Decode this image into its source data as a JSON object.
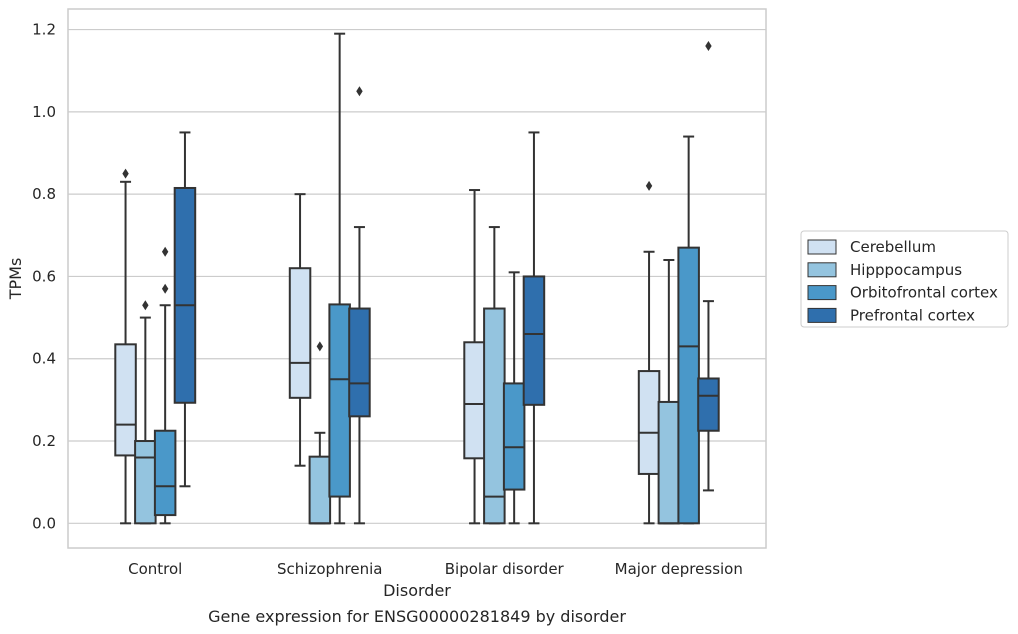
{
  "chart_data": {
    "type": "boxplot",
    "title": "Gene expression for ENSG00000281849 by disorder",
    "xlabel": "Disorder",
    "ylabel": "TPMs",
    "ylim": [
      -0.06,
      1.25
    ],
    "yticks": [
      "0.0",
      "0.2",
      "0.4",
      "0.6",
      "0.8",
      "1.0",
      "1.2"
    ],
    "ytick_values": [
      0,
      0.2,
      0.4,
      0.6,
      0.8,
      1.0,
      1.2
    ],
    "grid": "horizontal",
    "legend_position": "right",
    "categories": [
      "Control",
      "Schizophrenia",
      "Bipolar disorder",
      "Major depression"
    ],
    "series": [
      {
        "name": "Cerebellum",
        "color": "#d0e1f2",
        "boxes": [
          {
            "whislo": 0.0,
            "q1": 0.165,
            "med": 0.24,
            "q3": 0.435,
            "whishi": 0.83,
            "fliers": [
              0.85
            ]
          },
          {
            "whislo": 0.14,
            "q1": 0.305,
            "med": 0.39,
            "q3": 0.62,
            "whishi": 0.8,
            "fliers": []
          },
          {
            "whislo": 0.0,
            "q1": 0.158,
            "med": 0.29,
            "q3": 0.44,
            "whishi": 0.81,
            "fliers": []
          },
          {
            "whislo": 0.0,
            "q1": 0.12,
            "med": 0.22,
            "q3": 0.37,
            "whishi": 0.66,
            "fliers": [
              0.82
            ]
          }
        ]
      },
      {
        "name": "Hipppocampus",
        "color": "#94c4df",
        "boxes": [
          {
            "whislo": 0.0,
            "q1": 0.0,
            "med": 0.16,
            "q3": 0.2,
            "whishi": 0.5,
            "fliers": [
              0.53
            ]
          },
          {
            "whislo": 0.0,
            "q1": 0.0,
            "med": 0.0,
            "q3": 0.162,
            "whishi": 0.22,
            "fliers": [
              0.43
            ]
          },
          {
            "whislo": 0.0,
            "q1": 0.0,
            "med": 0.065,
            "q3": 0.522,
            "whishi": 0.72,
            "fliers": []
          },
          {
            "whislo": 0.0,
            "q1": 0.0,
            "med": 0.0,
            "q3": 0.295,
            "whishi": 0.64,
            "fliers": []
          }
        ]
      },
      {
        "name": "Orbitofrontal cortex",
        "color": "#4a98c9",
        "boxes": [
          {
            "whislo": 0.0,
            "q1": 0.02,
            "med": 0.09,
            "q3": 0.225,
            "whishi": 0.53,
            "fliers": [
              0.57,
              0.66
            ]
          },
          {
            "whislo": 0.0,
            "q1": 0.065,
            "med": 0.35,
            "q3": 0.532,
            "whishi": 1.19,
            "fliers": []
          },
          {
            "whislo": 0.0,
            "q1": 0.082,
            "med": 0.185,
            "q3": 0.34,
            "whishi": 0.61,
            "fliers": []
          },
          {
            "whislo": 0.0,
            "q1": 0.0,
            "med": 0.43,
            "q3": 0.67,
            "whishi": 0.94,
            "fliers": []
          }
        ]
      },
      {
        "name": "Prefrontal cortex",
        "color": "#2f6fad",
        "boxes": [
          {
            "whislo": 0.09,
            "q1": 0.293,
            "med": 0.53,
            "q3": 0.815,
            "whishi": 0.95,
            "fliers": []
          },
          {
            "whislo": 0.0,
            "q1": 0.26,
            "med": 0.34,
            "q3": 0.522,
            "whishi": 0.72,
            "fliers": [
              1.05
            ]
          },
          {
            "whislo": 0.0,
            "q1": 0.288,
            "med": 0.46,
            "q3": 0.6,
            "whishi": 0.95,
            "fliers": []
          },
          {
            "whislo": 0.08,
            "q1": 0.225,
            "med": 0.31,
            "q3": 0.352,
            "whishi": 0.54,
            "fliers": [
              1.16
            ]
          }
        ]
      }
    ]
  }
}
